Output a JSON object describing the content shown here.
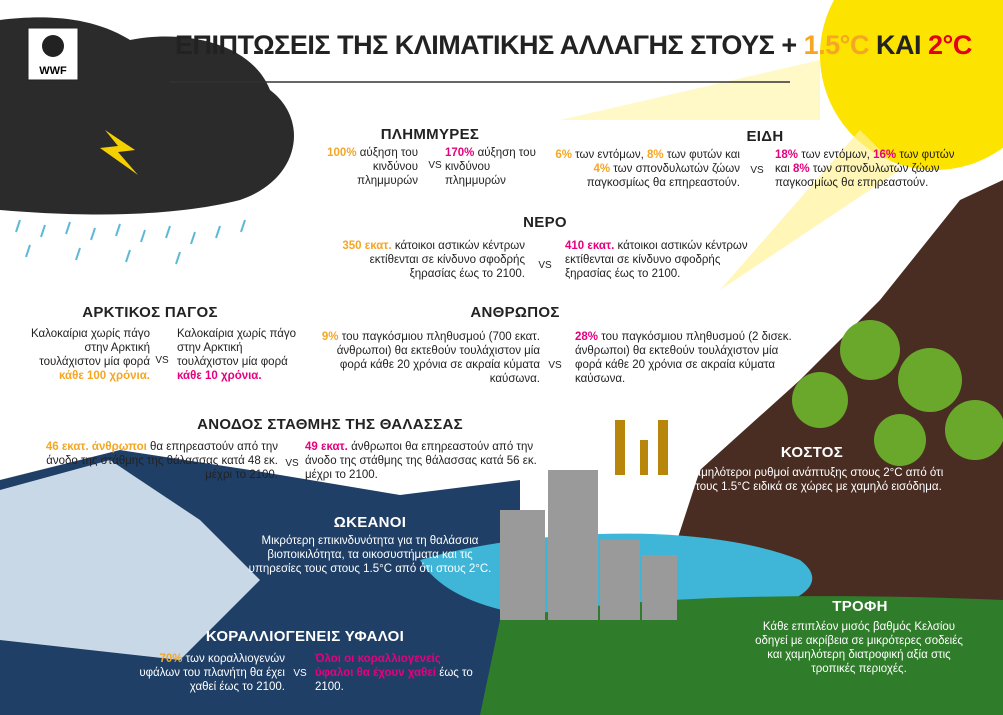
{
  "header": {
    "logo": "WWF",
    "title": [
      "ΕΠΙΠΤΩΣΕΙΣ ΤΗΣ ΚΛΙΜΑΤΙΚΗΣ ΑΛΛΑΓΗΣ ΣΤΟΥΣ +",
      "1.5°C",
      "ΚΑΙ",
      "2°C"
    ],
    "title_colors": [
      "#222222",
      "#f5a623",
      "#222222",
      "#e3001b"
    ]
  },
  "colors": {
    "left": "#f5a623",
    "right": "#e6007e"
  },
  "sections": {
    "floods": {
      "title": "ΠΛΗΜΜΥΡΕΣ",
      "vs": "VS",
      "left": [
        {
          "text": "100%",
          "em": true
        },
        {
          "text": " αύξηση του κινδύνου πλημμυρών"
        }
      ],
      "right": [
        {
          "text": "170%",
          "em": true
        },
        {
          "text": " αύξηση του κινδύνου πλημμυρών"
        }
      ]
    },
    "species": {
      "title": "ΕΙΔΗ",
      "vs": "VS",
      "left": [
        {
          "text": "6%",
          "em": true
        },
        {
          "text": " των εντόμων, "
        },
        {
          "text": "8%",
          "em": true
        },
        {
          "text": " των φυτών και "
        },
        {
          "text": "4%",
          "em": true
        },
        {
          "text": " των σπονδυλωτών ζώων παγκοσμίως θα επηρεαστούν."
        }
      ],
      "right": [
        {
          "text": "18%",
          "em": true
        },
        {
          "text": " των εντόμων, "
        },
        {
          "text": "16%",
          "em": true
        },
        {
          "text": " των φυτών και "
        },
        {
          "text": "8%",
          "em": true
        },
        {
          "text": " των σπονδυλωτών ζώων παγκοσμίως θα επηρεαστούν."
        }
      ]
    },
    "water": {
      "title": "ΝΕΡΟ",
      "vs": "VS",
      "left": [
        {
          "text": "350 εκατ.",
          "em": true
        },
        {
          "text": " κάτοικοι αστικών κέντρων εκτίθενται σε κίνδυνο σφοδρής ξηρασίας έως το 2100."
        }
      ],
      "right": [
        {
          "text": "410 εκατ.",
          "em": true
        },
        {
          "text": " κάτοικοι αστικών κέντρων εκτίθενται σε κίνδυνο σφοδρής ξηρασίας έως το 2100."
        }
      ]
    },
    "arctic": {
      "title": "ΑΡΚΤΙΚΟΣ ΠΑΓΟΣ",
      "vs": "VS",
      "left": [
        {
          "text": "Καλοκαίρια χωρίς πάγο στην Αρκτική τουλάχιστον μία φορά "
        },
        {
          "text": "κάθε 100 χρόνια.",
          "em": true
        }
      ],
      "right": [
        {
          "text": "Καλοκαίρια χωρίς πάγο στην Αρκτική τουλάχιστον μία φορά "
        },
        {
          "text": "κάθε 10 χρόνια.",
          "em": true
        }
      ]
    },
    "people": {
      "title": "ΑΝΘΡΩΠΟΣ",
      "vs": "VS",
      "left": [
        {
          "text": "9%",
          "em": true
        },
        {
          "text": " του παγκόσμιου πληθυσμού (700 εκατ. άνθρωποι) θα εκτεθούν τουλάχιστον μία φορά κάθε 20 χρόνια σε ακραία κύματα καύσωνα."
        }
      ],
      "right": [
        {
          "text": "28%",
          "em": true
        },
        {
          "text": " του παγκόσμιου πληθυσμού (2 δισεκ. άνθρωποι) θα εκτεθούν τουλάχιστον μία φορά κάθε 20 χρόνια σε ακραία κύματα καύσωνα."
        }
      ]
    },
    "sea": {
      "title": "ΑΝΟΔΟΣ ΣΤΑΘΜΗΣ ΤΗΣ ΘΑΛΑΣΣΑΣ",
      "vs": "VS",
      "left": [
        {
          "text": "46 εκατ. άνθρωποι",
          "em": true
        },
        {
          "text": " θα επηρεαστούν από την άνοδο της στάθμης της θάλασσας κατά 48 εκ. μέχρι το 2100."
        }
      ],
      "right": [
        {
          "text": "49 εκατ.",
          "em": true
        },
        {
          "text": " άνθρωποι θα επηρεαστούν από την άνοδο της στάθμης της θάλασσας κατά 56 εκ. μέχρι το 2100."
        }
      ]
    },
    "cost": {
      "title": "ΚΟΣΤΟΣ",
      "text": "Χαμηλότεροι ρυθμοί ανάπτυξης στους 2°C από ότι στους 1.5°C ειδικά σε χώρες με χαμηλό εισόδημα."
    },
    "oceans": {
      "title": "ΩΚΕΑΝΟΙ",
      "text": "Μικρότερη επικινδυνότητα για τη θαλάσσια βιοποικιλότητα, τα οικοσυστήματα και τις υπηρεσίες τους στους 1.5°C από ότι στους 2°C."
    },
    "coral": {
      "title": "ΚΟΡΑΛΛΙΟΓΕΝΕΙΣ ΥΦΑΛΟΙ",
      "vs": "VS",
      "left": [
        {
          "text": "70%",
          "em": true
        },
        {
          "text": " των κοραλλιογενών υφάλων του πλανήτη θα έχει χαθεί έως το 2100."
        }
      ],
      "right": [
        {
          "text": "Όλοι οι κοραλλιογενείς ύφαλοι θα έχουν χαθεί",
          "em": true
        },
        {
          "text": " έως το 2100."
        }
      ]
    },
    "food": {
      "title": "ΤΡΟΦΗ",
      "text": "Κάθε επιπλέον μισός βαθμός Κελσίου οδηγεί με ακρίβεια σε μικρότερες σοδειές και χαμηλότερη διατροφική αξία στις τροπικές περιοχές."
    }
  }
}
